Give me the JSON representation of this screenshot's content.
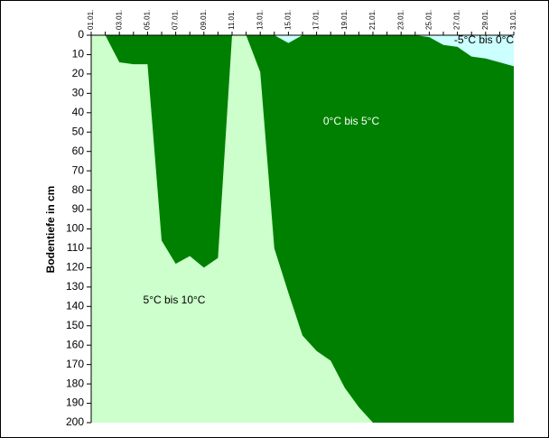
{
  "chart_data": {
    "type": "area",
    "ylabel": "Bodentiefe in cm",
    "annotation": "0°C bis 5°C",
    "background_color": "#008000",
    "categories": [
      "01.01.",
      null,
      "03.01.",
      null,
      "05.01.",
      null,
      "07.01.",
      null,
      "09.01.",
      null,
      "11.01.",
      null,
      "13.01.",
      null,
      "15.01.",
      null,
      "17.01.",
      null,
      "19.01.",
      null,
      "21.01.",
      null,
      "23.01.",
      null,
      "25.01.",
      null,
      "27.01.",
      null,
      "29.01.",
      null,
      "31.01."
    ],
    "series": [
      {
        "name": "5°C bis 10°C",
        "color": "#ccffcc",
        "fill_to": "bottom",
        "values": [
          0,
          0,
          14,
          15,
          15,
          106,
          118,
          114,
          120,
          115,
          0,
          0,
          19,
          110,
          133,
          155,
          163,
          168,
          182,
          192,
          200,
          null,
          null,
          null,
          null,
          null,
          null,
          null,
          null,
          null,
          null
        ]
      },
      {
        "name": "-5°C bis 0°C",
        "color": "#ccffff",
        "fill_to": "top",
        "values": [
          null,
          null,
          null,
          null,
          null,
          null,
          null,
          null,
          null,
          null,
          null,
          null,
          null,
          0,
          4,
          0,
          null,
          null,
          null,
          null,
          null,
          null,
          null,
          0,
          1,
          5,
          6,
          11,
          12,
          14,
          16
        ]
      }
    ],
    "ylim": [
      0,
      200
    ],
    "y_inverted": true,
    "yticks": [
      0,
      10,
      20,
      30,
      40,
      50,
      60,
      70,
      80,
      90,
      100,
      110,
      120,
      130,
      140,
      150,
      160,
      170,
      180,
      190,
      200
    ]
  }
}
